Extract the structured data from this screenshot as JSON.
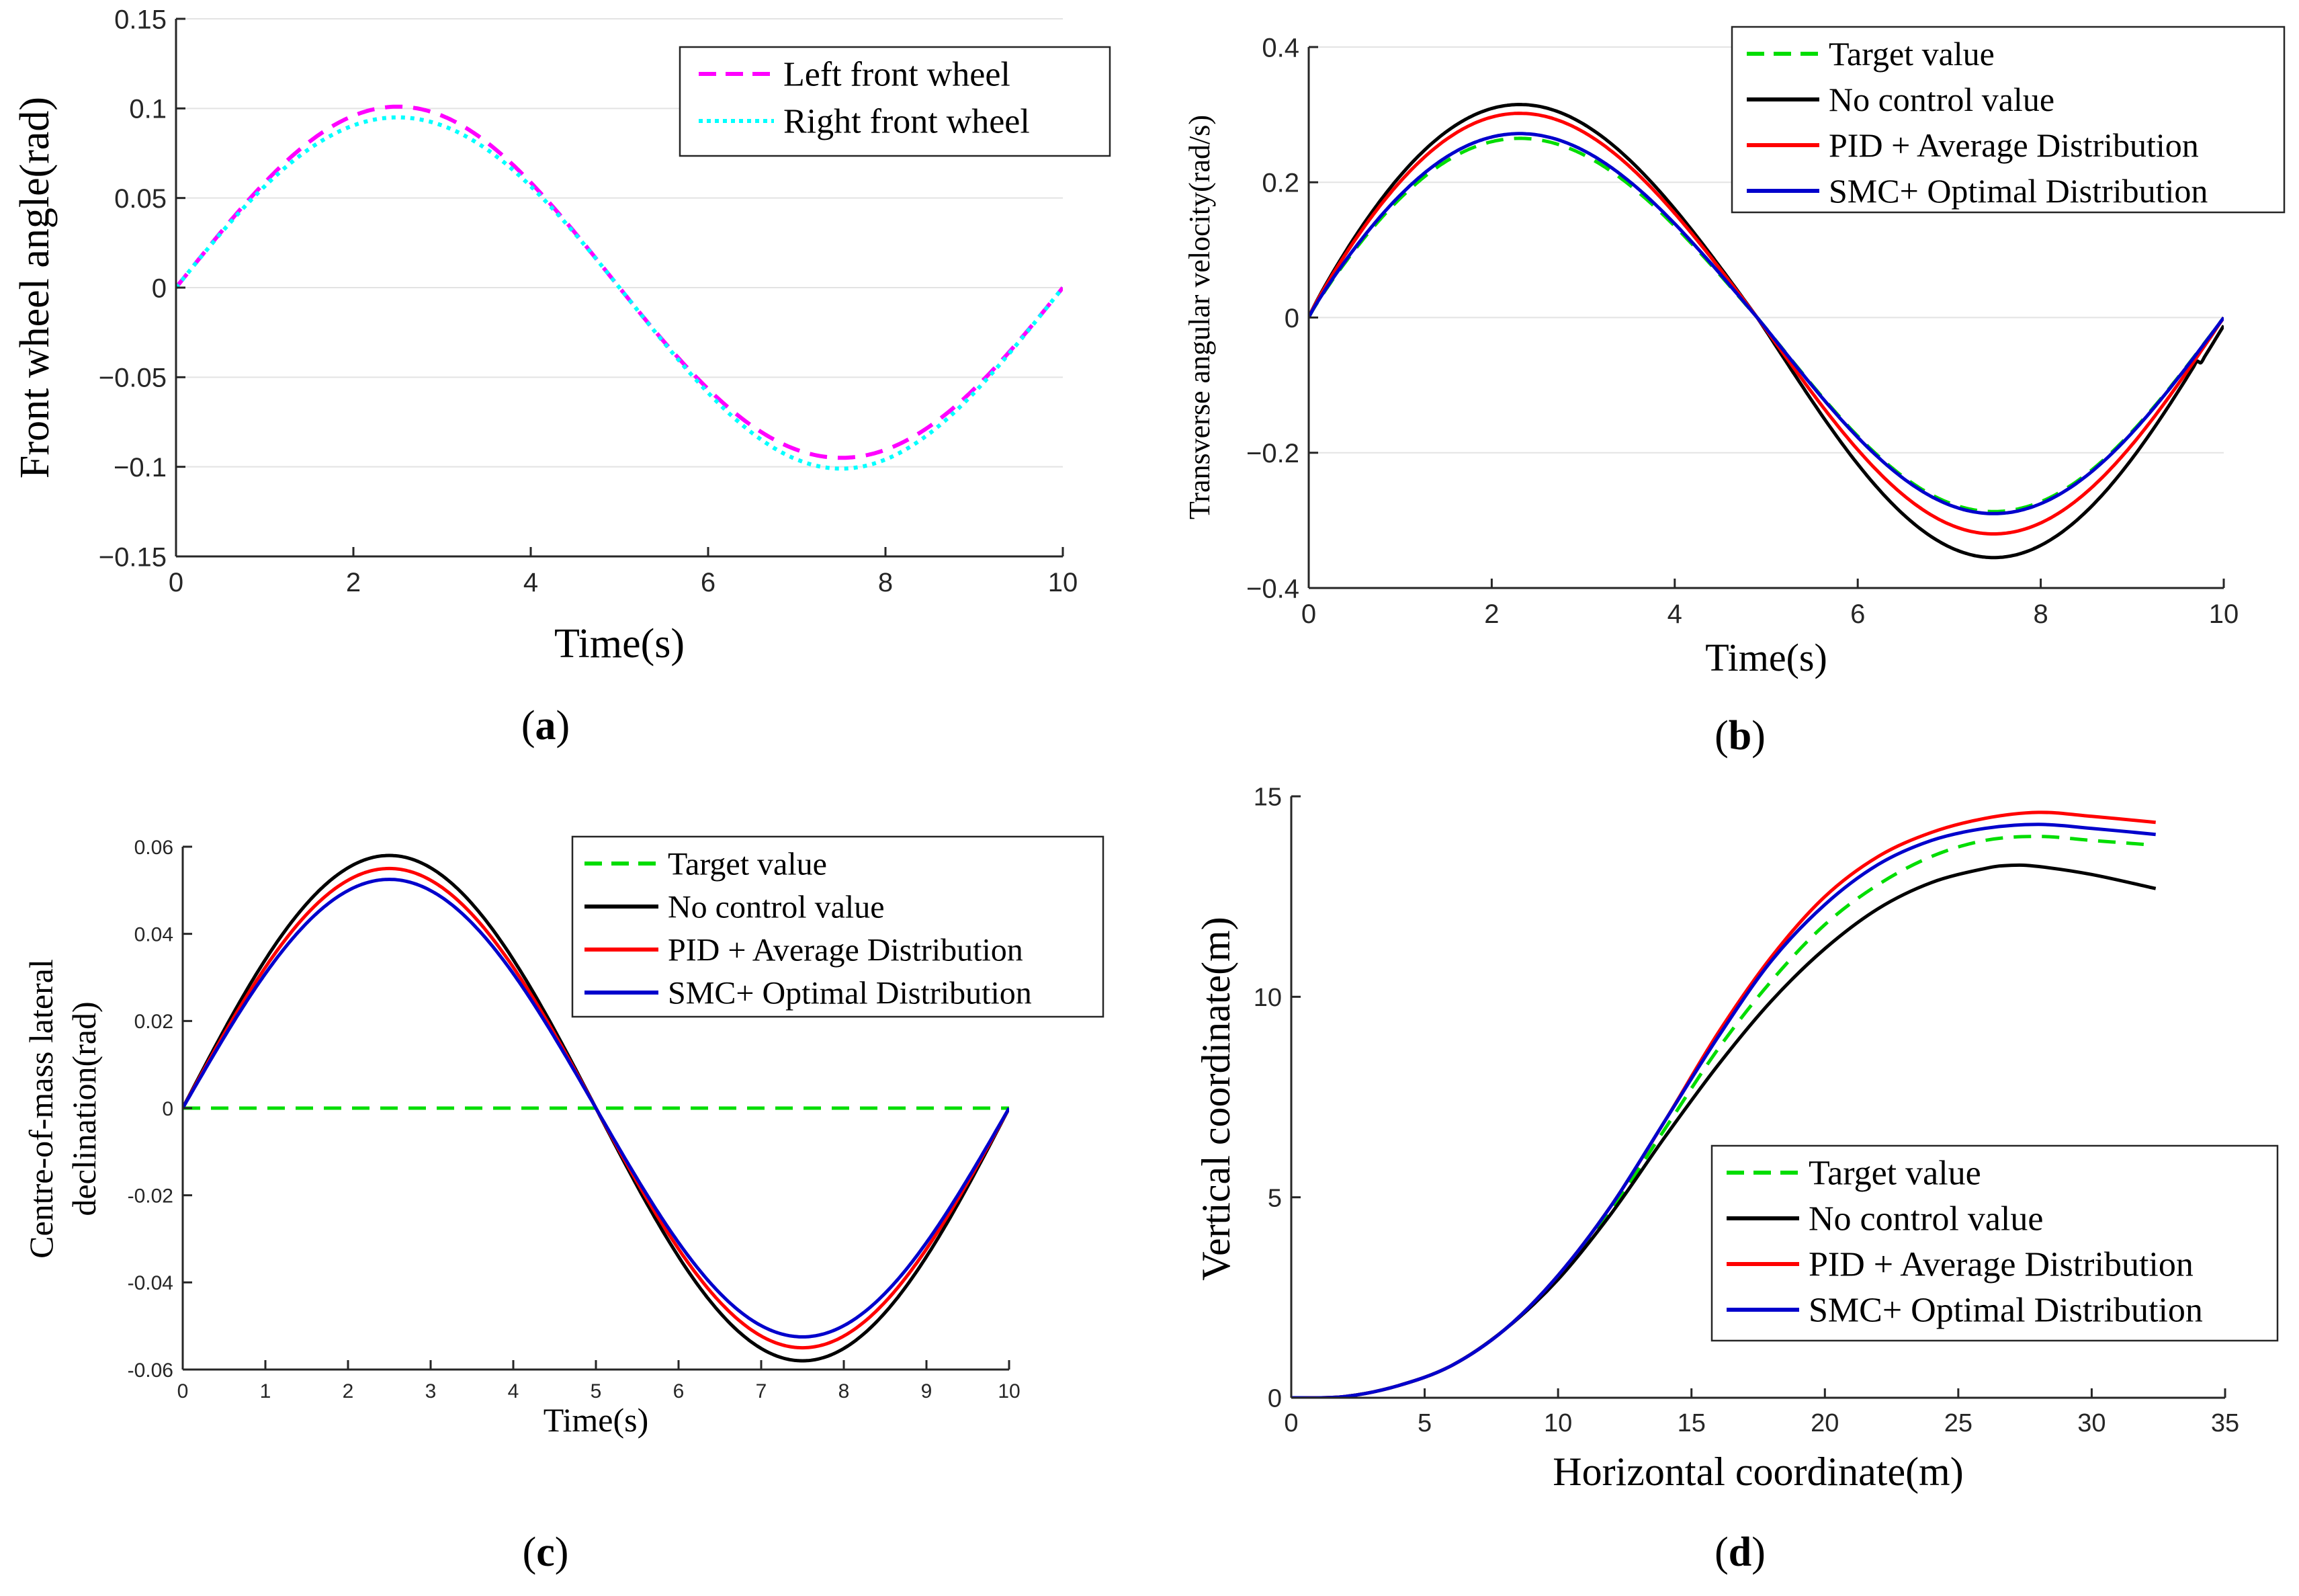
{
  "chart_data": [
    {
      "type": "line",
      "panel": "a",
      "caption": {
        "open": "(",
        "letter": "a",
        "close": ")"
      },
      "xlabel": "Time(s)",
      "ylabel": "Front wheel angle(rad)",
      "xlim": [
        0,
        10
      ],
      "ylim": [
        -0.15,
        0.15
      ],
      "xticks": [
        0,
        2,
        4,
        6,
        8,
        10
      ],
      "xtick_labels": [
        "0",
        "2",
        "4",
        "6",
        "8",
        "10"
      ],
      "yticks": [
        -0.15,
        -0.1,
        -0.05,
        0,
        0.05,
        0.1,
        0.15
      ],
      "ytick_labels": [
        "−0.15",
        "−0.1",
        "−0.05",
        "0",
        "0.05",
        "0.1",
        "0.15"
      ],
      "grid": "horizontal",
      "legend_position": "top-right",
      "series": [
        {
          "name": "Left front wheel",
          "color": "#ff00ff",
          "style": "dashed",
          "equation": "0.5*(A+B) sin(pi t/5) + 0.5*(A-B) (1-cos(2 pi t/5))",
          "peak": 0.101,
          "trough": -0.095
        },
        {
          "name": "Right front wheel",
          "color": "#00ffff",
          "style": "dotted",
          "peak": 0.095,
          "trough": -0.101
        }
      ]
    },
    {
      "type": "line",
      "panel": "b",
      "caption": {
        "open": "(",
        "letter": "b",
        "close": ")"
      },
      "xlabel": "Time(s)",
      "ylabel": "Transverse angular velocity(rad/s)",
      "xlim": [
        0,
        10
      ],
      "ylim": [
        -0.4,
        0.4
      ],
      "xticks": [
        0,
        2,
        4,
        6,
        8,
        10
      ],
      "xtick_labels": [
        "0",
        "2",
        "4",
        "6",
        "8",
        "10"
      ],
      "yticks": [
        -0.4,
        -0.2,
        0,
        0.2,
        0.4
      ],
      "ytick_labels": [
        "−0.4",
        "−0.2",
        "0",
        "0.2",
        "0.4"
      ],
      "grid": "horizontal",
      "legend_position": "top-right",
      "series": [
        {
          "name": "Target value",
          "color": "#00dd00",
          "style": "dashed",
          "peak": 0.265,
          "trough": -0.287,
          "peak_t": 2.65,
          "trough_t": 7.6
        },
        {
          "name": "No control value",
          "color": "#000000",
          "style": "solid",
          "peak": 0.315,
          "trough": -0.355,
          "peak_t": 2.65,
          "trough_t": 7.55
        },
        {
          "name": "PID + Average Distribution",
          "color": "#ff0000",
          "style": "solid",
          "peak": 0.302,
          "trough": -0.32,
          "peak_t": 2.65,
          "trough_t": 7.55
        },
        {
          "name": "SMC+ Optimal Distribution",
          "color": "#0000cc",
          "style": "solid",
          "peak": 0.272,
          "trough": -0.29,
          "peak_t": 2.65,
          "trough_t": 7.55
        }
      ]
    },
    {
      "type": "line",
      "panel": "c",
      "caption": {
        "open": "(",
        "letter": "c",
        "close": ")"
      },
      "xlabel": "Time(s)",
      "ylabel_lines": [
        "Centre-of-mass lateral",
        "declination(rad)"
      ],
      "xlim": [
        0,
        10
      ],
      "ylim": [
        -0.06,
        0.06
      ],
      "xticks": [
        0,
        1,
        2,
        3,
        4,
        5,
        6,
        7,
        8,
        9,
        10
      ],
      "xtick_labels": [
        "0",
        "1",
        "2",
        "3",
        "4",
        "5",
        "6",
        "7",
        "8",
        "9",
        "10"
      ],
      "yticks": [
        -0.06,
        -0.04,
        -0.02,
        0,
        0.02,
        0.04,
        0.06
      ],
      "ytick_labels": [
        "-0.06",
        "-0.04",
        "-0.02",
        "0",
        "0.02",
        "0.04",
        "0.06"
      ],
      "grid": "none",
      "legend_position": "top-right",
      "series": [
        {
          "name": "Target value",
          "color": "#00dd00",
          "style": "dashed",
          "constant": 0
        },
        {
          "name": "No control value",
          "color": "#000000",
          "style": "solid",
          "amplitude": 0.058
        },
        {
          "name": "PID + Average Distribution",
          "color": "#ff0000",
          "style": "solid",
          "amplitude": 0.055
        },
        {
          "name": "SMC+ Optimal Distribution",
          "color": "#0000cc",
          "style": "solid",
          "amplitude": 0.0525
        }
      ]
    },
    {
      "type": "line",
      "panel": "d",
      "caption": {
        "open": "(",
        "letter": "d",
        "close": ")"
      },
      "xlabel": "Horizontal coordinate(m)",
      "ylabel": "Vertical coordinate(m)",
      "xlim": [
        0,
        35
      ],
      "ylim": [
        0,
        15
      ],
      "xticks": [
        0,
        5,
        10,
        15,
        20,
        25,
        30,
        35
      ],
      "xtick_labels": [
        "0",
        "5",
        "10",
        "15",
        "20",
        "25",
        "30",
        "35"
      ],
      "yticks": [
        0,
        5,
        10,
        15
      ],
      "ytick_labels": [
        "0",
        "5",
        "10",
        "15"
      ],
      "grid": "none",
      "legend_position": "bottom-right",
      "series": [
        {
          "name": "Target value",
          "color": "#00dd00",
          "style": "dashed",
          "x": [
            0,
            2,
            4,
            6,
            8,
            10,
            12,
            14,
            16,
            18,
            20,
            22,
            24,
            26,
            28,
            30,
            32
          ],
          "y": [
            0,
            0.03,
            0.3,
            0.8,
            1.7,
            3.0,
            4.7,
            6.7,
            8.7,
            10.4,
            11.8,
            12.8,
            13.5,
            13.9,
            14.0,
            13.9,
            13.8
          ]
        },
        {
          "name": "No control value",
          "color": "#000000",
          "style": "solid",
          "x": [
            0,
            2,
            4,
            6,
            8,
            10,
            12,
            14,
            16,
            18,
            20,
            22,
            24,
            26,
            27,
            28,
            30,
            32.4
          ],
          "y": [
            0,
            0.03,
            0.3,
            0.8,
            1.7,
            2.95,
            4.6,
            6.5,
            8.3,
            9.9,
            11.2,
            12.2,
            12.85,
            13.2,
            13.28,
            13.25,
            13.05,
            12.7
          ]
        },
        {
          "name": "PID + Average Distribution",
          "color": "#ff0000",
          "style": "solid",
          "x": [
            0,
            2,
            4,
            6,
            8,
            10,
            12,
            14,
            16,
            18,
            20,
            22,
            24,
            26,
            28,
            30,
            32.4
          ],
          "y": [
            0,
            0.03,
            0.3,
            0.8,
            1.7,
            3.05,
            4.8,
            6.9,
            9.1,
            11.0,
            12.5,
            13.5,
            14.1,
            14.45,
            14.6,
            14.5,
            14.35
          ]
        },
        {
          "name": "SMC+ Optimal Distribution",
          "color": "#0000cc",
          "style": "solid",
          "x": [
            0,
            2,
            4,
            6,
            8,
            10,
            12,
            14,
            16,
            18,
            20,
            22,
            24,
            26,
            28,
            30,
            32.4
          ],
          "y": [
            0,
            0.03,
            0.3,
            0.8,
            1.7,
            3.05,
            4.8,
            6.9,
            9.0,
            10.9,
            12.3,
            13.3,
            13.9,
            14.2,
            14.3,
            14.2,
            14.05
          ]
        }
      ]
    }
  ]
}
